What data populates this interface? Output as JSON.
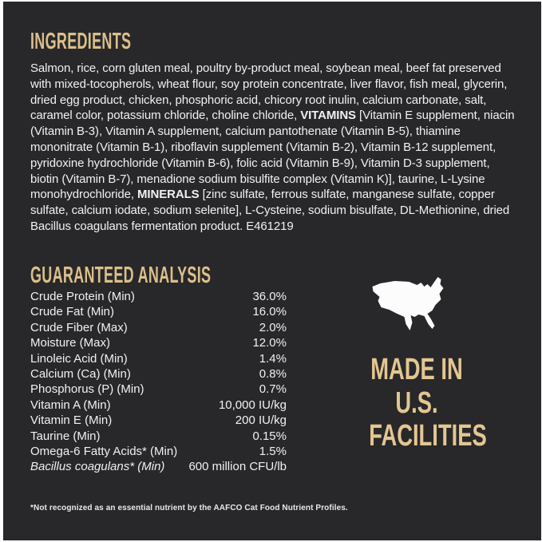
{
  "label_colors": {
    "background": "#28282a",
    "accent_tan": "#dcbf8a",
    "body_text": "#f1f1f1",
    "map_white": "#fcfcfc"
  },
  "ingredients": {
    "heading": "INGREDIENTS",
    "text_segments": [
      {
        "text": "Salmon, rice, corn gluten meal, poultry by-product meal, soybean meal, beef fat preserved with mixed-tocopherols, wheat flour, soy protein concentrate, liver flavor, fish meal, glycerin, dried egg product, chicken, phosphoric acid, chicory root inulin, calcium carbonate, salt, caramel color, potassium chloride, choline chloride, ",
        "bold": false
      },
      {
        "text": "VITAMINS",
        "bold": true
      },
      {
        "text": " [Vitamin E supplement, niacin (Vitamin B-3), Vitamin A supplement, calcium pantothenate (Vitamin B-5), thiamine mononitrate (Vitamin B-1), riboflavin supplement (Vitamin B-2), Vitamin B-12 supplement, pyridoxine hydrochloride (Vitamin B-6), folic acid (Vitamin B-9), Vitamin D-3 supplement, biotin (Vitamin B-7), menadione sodium bisulfite complex (Vitamin K)], taurine, L-Lysine monohydrochloride, ",
        "bold": false
      },
      {
        "text": "MINERALS",
        "bold": true
      },
      {
        "text": " [zinc sulfate, ferrous sulfate, manganese sulfate, copper sulfate, calcium iodate, sodium selenite], L-Cysteine, sodium bisulfate, DL-Methionine, dried Bacillus coagulans fermentation product. E461219",
        "bold": false
      }
    ]
  },
  "guaranteed_analysis": {
    "heading": "GUARANTEED ANALYSIS",
    "rows": [
      {
        "label": "Crude Protein (Min)",
        "value": "36.0%",
        "italic_label": false
      },
      {
        "label": "Crude Fat (Min)",
        "value": "16.0%",
        "italic_label": false
      },
      {
        "label": "Crude Fiber (Max)",
        "value": "2.0%",
        "italic_label": false
      },
      {
        "label": "Moisture (Max)",
        "value": "12.0%",
        "italic_label": false
      },
      {
        "label": "Linoleic Acid (Min)",
        "value": "1.4%",
        "italic_label": false
      },
      {
        "label": "Calcium (Ca) (Min)",
        "value": "0.8%",
        "italic_label": false
      },
      {
        "label": "Phosphorus (P) (Min)",
        "value": "0.7%",
        "italic_label": false
      },
      {
        "label": "Vitamin A (Min)",
        "value": "10,000 IU/kg",
        "italic_label": false
      },
      {
        "label": "Vitamin E (Min)",
        "value": "200 IU/kg",
        "italic_label": false
      },
      {
        "label": "Taurine (Min)",
        "value": "0.15%",
        "italic_label": false
      },
      {
        "label": "Omega-6 Fatty Acids* (Min)",
        "value": "1.5%",
        "italic_label": false
      },
      {
        "label": "Bacillus coagulans* (Min)",
        "value": "600 million CFU/lb",
        "italic_label": true
      }
    ]
  },
  "made_in": {
    "lines": [
      "MADE IN",
      "U.S.",
      "FACILITIES"
    ],
    "map_icon": "usa-map-icon"
  },
  "footnote": "*Not recognized as an essential nutrient by the AAFCO Cat Food Nutrient Profiles."
}
